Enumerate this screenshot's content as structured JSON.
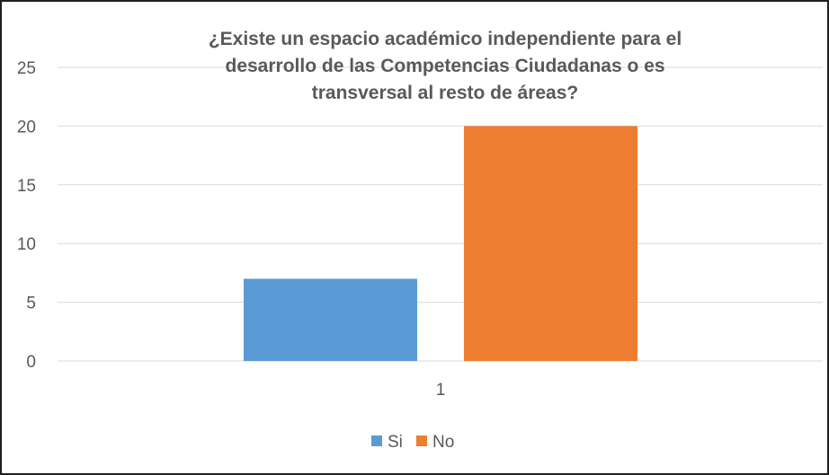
{
  "chart_data": {
    "type": "bar",
    "title_lines": [
      "¿Existe un espacio académico independiente para el",
      "desarrollo de las Competencias Ciudadanas  o es",
      "transversal  al resto de áreas?"
    ],
    "categories": [
      "1"
    ],
    "series": [
      {
        "name": "Si",
        "values": [
          7
        ],
        "color": "#5b9bd5"
      },
      {
        "name": "No",
        "values": [
          20
        ],
        "color": "#ed7d31"
      }
    ],
    "y_ticks": [
      "0",
      "5",
      "10",
      "15",
      "20",
      "25"
    ],
    "ylim": [
      0,
      25
    ],
    "grid": true,
    "legend_position": "bottom"
  }
}
